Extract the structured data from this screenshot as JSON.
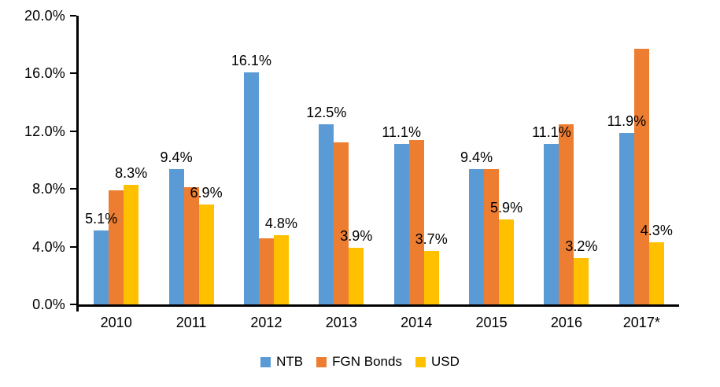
{
  "chart_data": {
    "type": "bar",
    "title": "",
    "xlabel": "",
    "ylabel": "",
    "grid": false,
    "ylim": [
      0,
      20
    ],
    "categories": [
      "2010",
      "2011",
      "2012",
      "2013",
      "2014",
      "2015",
      "2016",
      "2017*"
    ],
    "series": [
      {
        "name": "NTB",
        "color": "#5B9BD5",
        "values": [
          5.1,
          9.4,
          16.1,
          12.5,
          11.1,
          9.4,
          11.1,
          11.9
        ],
        "labels": [
          "5.1%",
          "9.4%",
          "16.1%",
          "12.5%",
          "11.1%",
          "9.4%",
          "11.1%",
          "11.9%"
        ]
      },
      {
        "name": "FGN Bonds",
        "color": "#ED7D31",
        "values": [
          7.9,
          8.1,
          4.6,
          11.2,
          11.4,
          9.4,
          12.5,
          17.7
        ],
        "labels": []
      },
      {
        "name": "USD",
        "color": "#FFC000",
        "values": [
          8.3,
          6.9,
          4.8,
          3.9,
          3.7,
          5.9,
          3.2,
          4.3
        ],
        "labels": [
          "8.3%",
          "6.9%",
          "4.8%",
          "3.9%",
          "3.7%",
          "5.9%",
          "3.2%",
          "4.3%"
        ]
      }
    ],
    "yticks": [
      {
        "value": 0,
        "label": "0.0%"
      },
      {
        "value": 4,
        "label": "4.0%"
      },
      {
        "value": 8,
        "label": "8.0%"
      },
      {
        "value": 12,
        "label": "12.0%"
      },
      {
        "value": 16,
        "label": "16.0%"
      },
      {
        "value": 20,
        "label": "20.0%"
      }
    ],
    "legend": {
      "position": "bottom",
      "entries": [
        "NTB",
        "FGN Bonds",
        "USD"
      ]
    }
  },
  "colors": {
    "axis": "#000000",
    "text": "#000000",
    "background": "#FFFFFF"
  }
}
